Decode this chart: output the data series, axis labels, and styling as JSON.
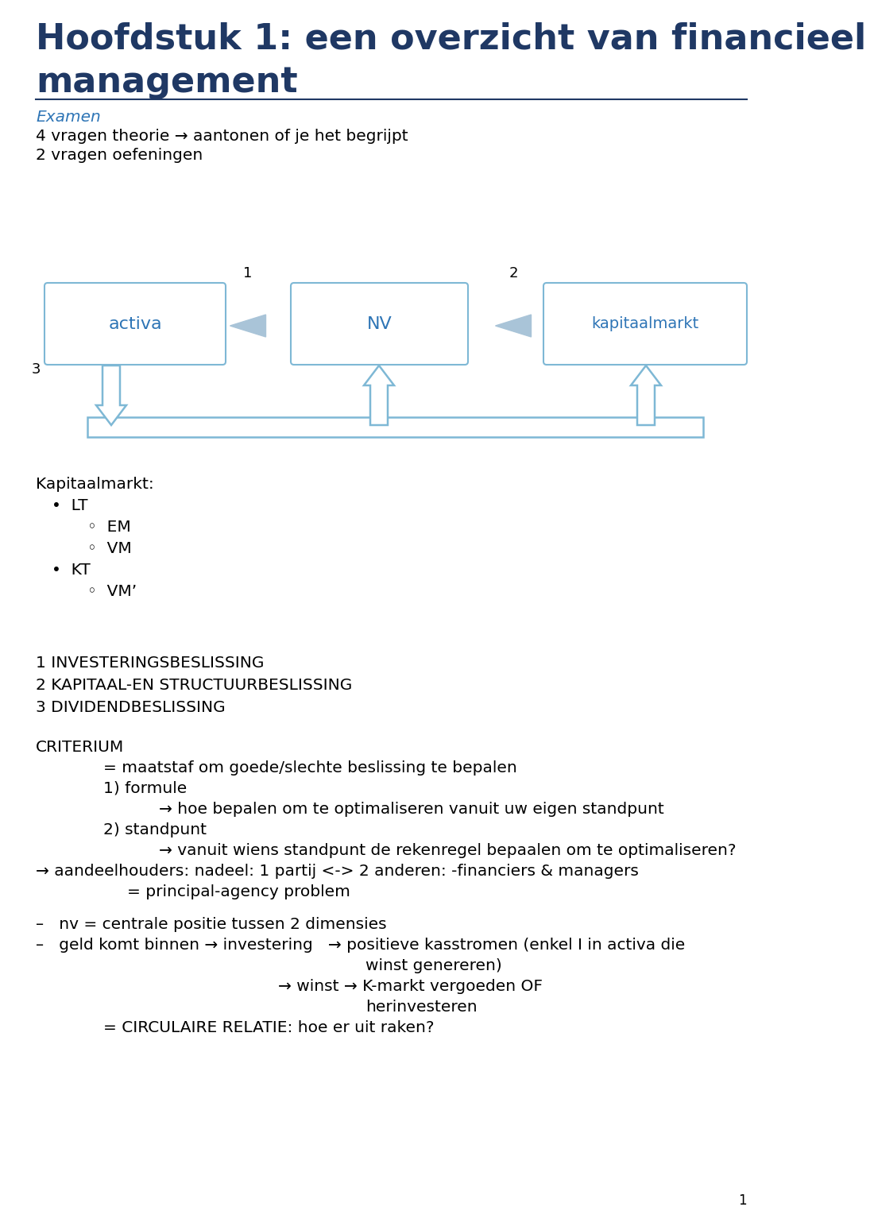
{
  "title_line1": "Hoofdstuk 1: een overzicht van financieel",
  "title_line2": "management",
  "title_color": "#1F3864",
  "title_fontsize": 26,
  "examen_label": "Examen",
  "examen_color": "#2E75B6",
  "arrow_color": "#7EB8D5",
  "arrow_fill": "#A9C4D8",
  "bg_color": "#FFFFFF",
  "box_color": "#FFFFFF",
  "box_edge": "#7EB8D5",
  "box_text_color": "#2E75B6",
  "text_color": "#000000",
  "line_color": "#1F3864"
}
